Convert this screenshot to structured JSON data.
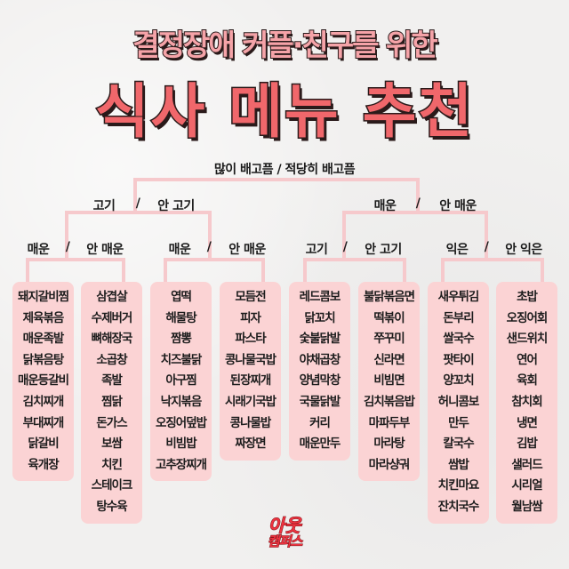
{
  "title": {
    "subtitle": "결정장애 커플·친구를 위한",
    "main": "식사 메뉴 추천"
  },
  "tree": {
    "root": "많이 배고픔 / 적당히 배고픔",
    "level2": [
      {
        "left": "고기",
        "sep": "/",
        "right": "안 고기"
      },
      {
        "left": "매운",
        "sep": "/",
        "right": "안 매운"
      }
    ],
    "level3": [
      {
        "left": "매운",
        "sep": "/",
        "right": "안 매운"
      },
      {
        "left": "매운",
        "sep": "/",
        "right": "안 매운"
      },
      {
        "left": "고기",
        "sep": "/",
        "right": "안 고기"
      },
      {
        "left": "익은",
        "sep": "/",
        "right": "안 익은"
      }
    ]
  },
  "columns": [
    {
      "items": [
        "돼지갈비찜",
        "제육볶음",
        "매운족발",
        "닭볶음탕",
        "매운등갈비",
        "김치찌개",
        "부대찌개",
        "닭갈비",
        "육개장"
      ]
    },
    {
      "items": [
        "삼겹살",
        "수제버거",
        "뼈해장국",
        "소곱창",
        "족발",
        "찜닭",
        "돈가스",
        "보쌈",
        "치킨",
        "스테이크",
        "탕수육"
      ]
    },
    {
      "items": [
        "엽떡",
        "해물탕",
        "짬뽕",
        "치즈불닭",
        "아구찜",
        "낙지볶음",
        "오징어덮밥",
        "비빔밥",
        "고추장찌개"
      ]
    },
    {
      "items": [
        "모듬전",
        "피자",
        "파스타",
        "콩나물국밥",
        "된장찌개",
        "시래기국밥",
        "콩나물밥",
        "짜장면"
      ]
    },
    {
      "items": [
        "레드콤보",
        "닭꼬치",
        "숯불닭발",
        "야채곱창",
        "양념막창",
        "국물닭발",
        "커리",
        "매운만두"
      ]
    },
    {
      "items": [
        "불닭볶음면",
        "떡볶이",
        "쭈꾸미",
        "신라면",
        "비빔면",
        "김치볶음밥",
        "마파두부",
        "마라탕",
        "마라샹궈"
      ]
    },
    {
      "items": [
        "새우튀김",
        "돈부리",
        "쌀국수",
        "팟타이",
        "양꼬치",
        "허니콤보",
        "만두",
        "칼국수",
        "쌈밥",
        "치킨마요",
        "잔치국수"
      ]
    },
    {
      "items": [
        "초밥",
        "오징어회",
        "샌드위치",
        "연어",
        "육회",
        "참치회",
        "냉면",
        "김밥",
        "샐러드",
        "시리얼",
        "월남쌈"
      ]
    }
  ],
  "logo": {
    "line1": "아웃",
    "line2": "캠퍼스"
  },
  "colors": {
    "title": "#f0676b",
    "subtitle": "#f5a3a8",
    "box": "#fbd3d4",
    "line": "#f6c9cc"
  }
}
